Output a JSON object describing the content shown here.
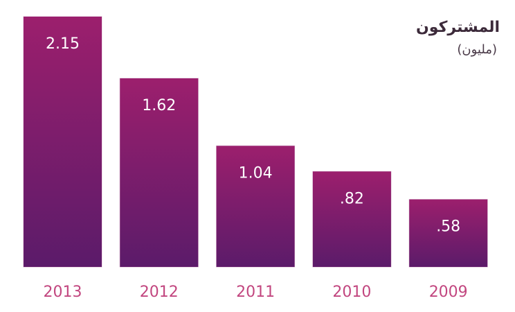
{
  "chart_data": {
    "type": "bar",
    "title": "المشتركون",
    "subtitle": "(مليون)",
    "categories": [
      "2013",
      "2012",
      "2011",
      "2010",
      "2009"
    ],
    "values": [
      2.15,
      1.62,
      1.04,
      0.82,
      0.58
    ],
    "value_labels": [
      "2.15",
      "1.62",
      "1.04",
      ".82",
      ".58"
    ],
    "color": "#8a1f6e"
  }
}
